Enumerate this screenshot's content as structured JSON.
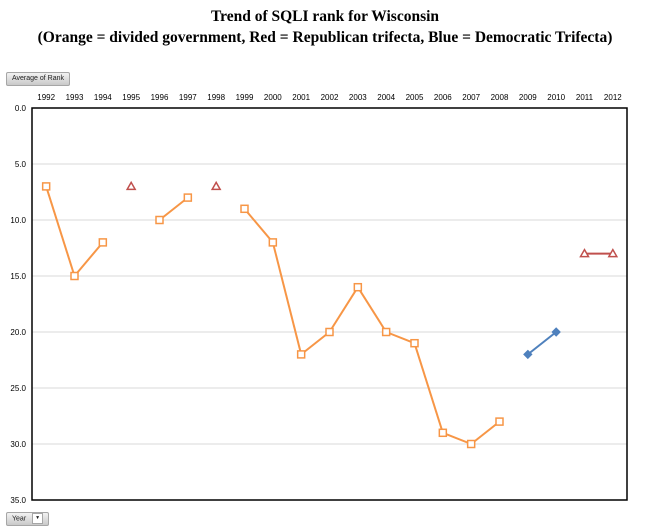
{
  "title": "Trend of SQLI rank for Wisconsin",
  "subtitle": "(Orange = divided  government, Red = Republican  trifecta, Blue = Democratic Trifecta)",
  "pivot_fields": {
    "values_button": "Average of Rank",
    "axis_button": "Year"
  },
  "colors": {
    "divided": "#f79646",
    "republican": "#c0504d",
    "democratic": "#4f81bd",
    "grid": "#d9d9d9",
    "frame": "#000000"
  },
  "chart_data": {
    "type": "line",
    "title": "Trend of SQLI rank for Wisconsin",
    "subtitle": "(Orange = divided  government, Red = Republican  trifecta, Blue = Democratic Trifecta)",
    "categories": [
      "1992",
      "1993",
      "1994",
      "1995",
      "1996",
      "1997",
      "1998",
      "1999",
      "2000",
      "2001",
      "2002",
      "2003",
      "2004",
      "2005",
      "2006",
      "2007",
      "2008",
      "2009",
      "2010",
      "2011",
      "2012"
    ],
    "ylim": [
      0,
      35
    ],
    "y_reversed": true,
    "y_ticks": [
      "0.0",
      "5.0",
      "10.0",
      "15.0",
      "20.0",
      "25.0",
      "30.0",
      "35.0"
    ],
    "x_axis_position": "top",
    "grid": true,
    "legend": "none",
    "series": [
      {
        "color_key": "divided",
        "marker": "square",
        "values": [
          7,
          15,
          12,
          null,
          10,
          8,
          null,
          9,
          12,
          22,
          20,
          16,
          20,
          21,
          29,
          30,
          28,
          null,
          null,
          null,
          null
        ]
      },
      {
        "color_key": "republican",
        "marker": "triangle",
        "values": [
          null,
          null,
          null,
          7,
          null,
          null,
          7,
          null,
          null,
          null,
          null,
          null,
          null,
          null,
          null,
          null,
          null,
          null,
          null,
          13,
          13
        ]
      },
      {
        "color_key": "democratic",
        "marker": "diamond",
        "values": [
          null,
          null,
          null,
          null,
          null,
          null,
          null,
          null,
          null,
          null,
          null,
          null,
          null,
          null,
          null,
          null,
          null,
          22,
          20,
          null,
          null
        ]
      }
    ]
  }
}
